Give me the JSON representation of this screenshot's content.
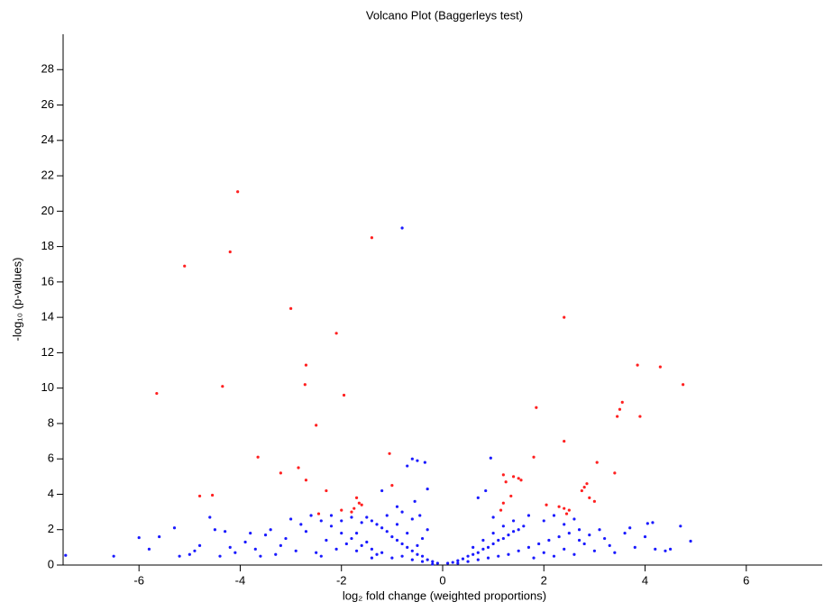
{
  "chart_data": {
    "type": "scatter",
    "title": "Volcano Plot (Baggerleys test)",
    "x_label": "log₂ fold change (weighted proportions)",
    "y_label": "-log₁₀ (p-values)",
    "xlim": [
      -7.5,
      7.5
    ],
    "ylim": [
      0,
      30
    ],
    "xticks": [
      -6,
      -4,
      -2,
      0,
      2,
      4,
      6
    ],
    "yticks": [
      0,
      2,
      4,
      6,
      8,
      10,
      12,
      14,
      16,
      18,
      20,
      22,
      24,
      26,
      28
    ],
    "series": [
      {
        "color": "#1a1aff",
        "x": [
          -0.1,
          -0.2,
          -0.3,
          -0.4,
          -0.5,
          -0.6,
          -0.7,
          -0.8,
          -0.9,
          -1.0,
          -1.1,
          -1.2,
          -1.3,
          -1.4,
          -1.5,
          -0.2,
          -0.4,
          -0.6,
          -0.8,
          -1.0,
          -1.2,
          -1.4,
          -1.6,
          -1.8,
          -2.0,
          -2.2,
          -2.4,
          -2.6,
          -0.5,
          -0.7,
          -0.9,
          -1.1,
          -0.6,
          -0.8,
          -0.4,
          -0.3,
          -1.3,
          -1.5,
          -1.7,
          -1.9,
          -2.1,
          -2.3,
          -2.5,
          -2.7,
          -2.9,
          -3.1,
          -3.3,
          -3.5,
          -3.7,
          -3.9,
          -4.1,
          -4.3,
          -4.5,
          -4.6,
          -4.8,
          -5.0,
          -5.3,
          -5.6,
          -6.0,
          -6.5,
          -7.45,
          -1.6,
          -1.8,
          -2.0,
          -2.2,
          -1.4,
          -1.7,
          -2.4,
          -2.8,
          -3.0,
          -3.2,
          -3.4,
          -3.6,
          -3.8,
          -4.2,
          -4.4,
          -4.9,
          -5.2,
          -5.8,
          -0.8,
          -0.6,
          -0.5,
          -0.35,
          -0.7,
          -0.3,
          -0.55,
          -0.45,
          -1.2,
          -0.9,
          0.1,
          0.2,
          0.3,
          0.4,
          0.5,
          0.6,
          0.7,
          0.8,
          0.9,
          1.0,
          1.1,
          1.2,
          1.3,
          1.4,
          1.5,
          1.6,
          0.3,
          0.5,
          0.7,
          0.9,
          1.1,
          1.3,
          1.5,
          1.7,
          1.9,
          2.1,
          2.3,
          2.5,
          2.7,
          0.6,
          0.8,
          1.0,
          1.2,
          1.4,
          1.0,
          0.95,
          0.85,
          0.7,
          1.7,
          2.0,
          2.2,
          2.4,
          2.6,
          1.8,
          2.0,
          2.2,
          2.4,
          2.6,
          2.8,
          3.0,
          3.2,
          3.4,
          3.6,
          3.8,
          4.0,
          4.05,
          4.15,
          4.4,
          4.7,
          4.9,
          4.2,
          3.7,
          3.3,
          2.9,
          3.1,
          2.7,
          4.5
        ],
        "values": [
          0.1,
          0.2,
          0.3,
          0.5,
          0.6,
          0.8,
          1.0,
          1.2,
          1.4,
          1.6,
          1.9,
          2.1,
          2.3,
          2.5,
          2.7,
          0.05,
          0.2,
          0.3,
          0.5,
          0.4,
          0.7,
          0.9,
          1.1,
          1.5,
          1.8,
          2.2,
          2.5,
          2.8,
          1.1,
          1.8,
          2.3,
          2.8,
          2.6,
          3.0,
          1.5,
          2.0,
          0.6,
          1.3,
          0.8,
          1.2,
          0.9,
          1.4,
          0.7,
          1.9,
          0.8,
          1.5,
          0.6,
          1.7,
          0.9,
          1.3,
          0.7,
          1.9,
          2.0,
          2.7,
          1.1,
          0.6,
          2.1,
          1.6,
          1.55,
          0.5,
          0.55,
          2.4,
          2.7,
          2.5,
          2.8,
          0.4,
          1.8,
          0.5,
          2.3,
          2.6,
          1.1,
          2.0,
          0.5,
          1.8,
          1.0,
          0.5,
          0.8,
          0.5,
          0.9,
          19.05,
          6.0,
          5.9,
          5.8,
          5.6,
          4.3,
          3.6,
          2.8,
          4.2,
          3.3,
          0.1,
          0.15,
          0.25,
          0.35,
          0.5,
          0.6,
          0.7,
          0.9,
          1.0,
          1.2,
          1.4,
          1.5,
          1.7,
          1.9,
          2.0,
          2.2,
          0.1,
          0.2,
          0.3,
          0.4,
          0.5,
          0.6,
          0.8,
          1.0,
          1.2,
          1.4,
          1.6,
          1.8,
          2.0,
          1.0,
          1.4,
          1.8,
          2.2,
          2.5,
          2.7,
          6.05,
          4.2,
          3.8,
          2.8,
          2.5,
          2.8,
          2.3,
          2.6,
          0.4,
          0.7,
          0.5,
          0.9,
          0.6,
          1.2,
          0.8,
          1.5,
          0.7,
          1.8,
          1.0,
          1.6,
          2.35,
          2.4,
          0.8,
          2.2,
          1.35,
          0.9,
          2.1,
          1.1,
          1.7,
          2.0,
          1.4,
          0.9
        ]
      },
      {
        "color": "#ff2020",
        "x": [
          -4.05,
          -4.2,
          -5.1,
          -5.65,
          -4.35,
          -3.0,
          -1.4,
          -2.1,
          -2.7,
          -2.72,
          -1.95,
          -2.5,
          -3.65,
          -2.85,
          -3.2,
          -2.7,
          -2.3,
          -4.8,
          -4.55,
          -1.05,
          -1.0,
          -1.7,
          -1.65,
          -1.75,
          -1.8,
          -1.6,
          -2.0,
          -2.45,
          2.4,
          3.85,
          4.3,
          4.75,
          3.55,
          3.5,
          3.45,
          3.9,
          1.85,
          2.4,
          1.8,
          3.05,
          3.4,
          1.2,
          1.4,
          1.5,
          1.55,
          1.25,
          2.85,
          2.8,
          2.75,
          2.9,
          3.0,
          1.35,
          1.2,
          2.05,
          2.3,
          2.4,
          2.5,
          2.45,
          1.15
        ],
        "values": [
          21.1,
          17.7,
          16.9,
          9.7,
          10.1,
          14.5,
          18.5,
          13.1,
          11.3,
          10.2,
          9.6,
          7.9,
          6.1,
          5.5,
          5.2,
          4.8,
          4.2,
          3.9,
          3.95,
          6.3,
          4.5,
          3.8,
          3.5,
          3.2,
          3.0,
          3.4,
          3.1,
          2.9,
          14.0,
          11.3,
          11.2,
          10.2,
          9.2,
          8.8,
          8.4,
          8.4,
          8.9,
          7.0,
          6.1,
          5.8,
          5.2,
          5.1,
          5.0,
          4.9,
          4.8,
          4.7,
          4.6,
          4.4,
          4.2,
          3.8,
          3.6,
          3.9,
          3.5,
          3.4,
          3.3,
          3.2,
          3.1,
          2.9,
          3.1
        ]
      }
    ]
  }
}
